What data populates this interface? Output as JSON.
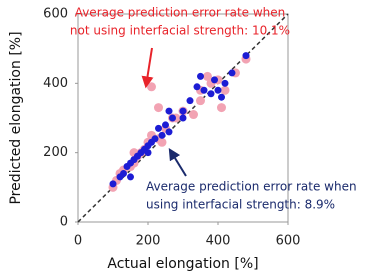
{
  "chart_data": {
    "type": "scatter",
    "xlabel": "Actual elongation [%]",
    "ylabel": "Predicted elongation [%]",
    "xlim": [
      0,
      600
    ],
    "ylim": [
      0,
      600
    ],
    "xticks": [
      0,
      200,
      400,
      600
    ],
    "yticks": [
      0,
      200,
      400,
      600
    ],
    "series": [
      {
        "color": "#f2a3b3",
        "x": [
          100,
          110,
          130,
          150,
          160,
          170,
          180,
          190,
          200,
          210,
          230,
          250,
          270,
          300,
          210,
          330,
          350,
          370,
          380,
          400,
          410,
          420,
          450,
          480,
          350,
          120,
          230,
          280,
          240,
          160
        ],
        "y": [
          100,
          120,
          150,
          160,
          170,
          190,
          200,
          210,
          230,
          250,
          240,
          270,
          300,
          320,
          390,
          310,
          380,
          420,
          400,
          410,
          330,
          380,
          430,
          470,
          350,
          140,
          330,
          300,
          230,
          200
        ]
      },
      {
        "color": "#1c1cd4",
        "x": [
          100,
          120,
          130,
          140,
          150,
          160,
          170,
          180,
          190,
          200,
          210,
          220,
          230,
          240,
          250,
          260,
          270,
          300,
          320,
          340,
          360,
          380,
          400,
          410,
          420,
          440,
          480,
          150,
          200,
          260,
          300,
          350,
          390
        ],
        "y": [
          110,
          130,
          140,
          160,
          170,
          180,
          190,
          200,
          210,
          220,
          230,
          240,
          270,
          250,
          280,
          260,
          300,
          320,
          350,
          390,
          380,
          370,
          380,
          360,
          400,
          430,
          480,
          130,
          200,
          320,
          300,
          420,
          410
        ]
      }
    ],
    "annotations": [
      {
        "color": "#e8232a",
        "lines": [
          "Average prediction error rate when",
          "not using interfacial strength: 10.1%"
        ]
      },
      {
        "color": "#1a2a6c",
        "lines": [
          "Average  prediction  error rate  when",
          "using interfacial strength: 8.9%"
        ]
      }
    ]
  }
}
